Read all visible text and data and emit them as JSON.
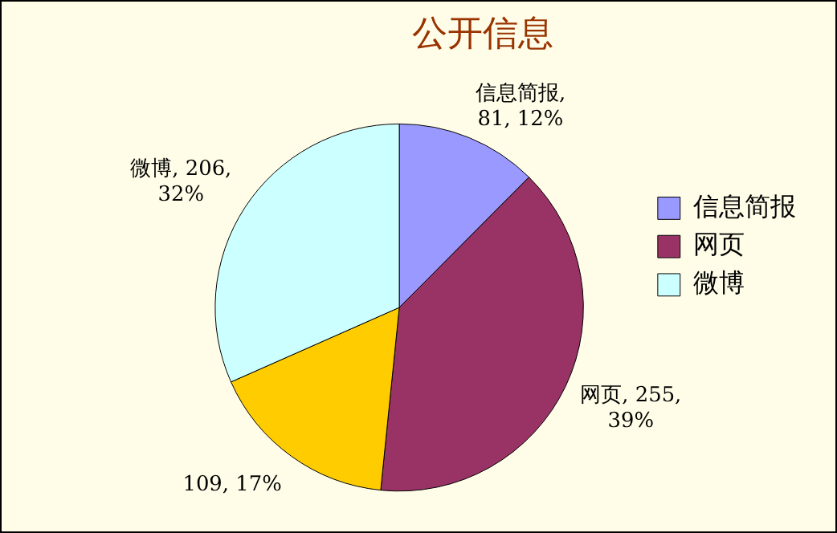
{
  "chart_data": {
    "type": "pie",
    "title": "公开信息",
    "categories": [
      "信息简报",
      "网页",
      null,
      "微博"
    ],
    "values": [
      81,
      255,
      109,
      206
    ],
    "colors": [
      "#9999ff",
      "#993366",
      "#ffcc00",
      "#ccffff"
    ],
    "value_labels": [
      "信息简报, 81, 12%",
      "网页, 255, 39%",
      "109, 17%",
      "微博, 206, 32%"
    ],
    "legend": "right"
  }
}
